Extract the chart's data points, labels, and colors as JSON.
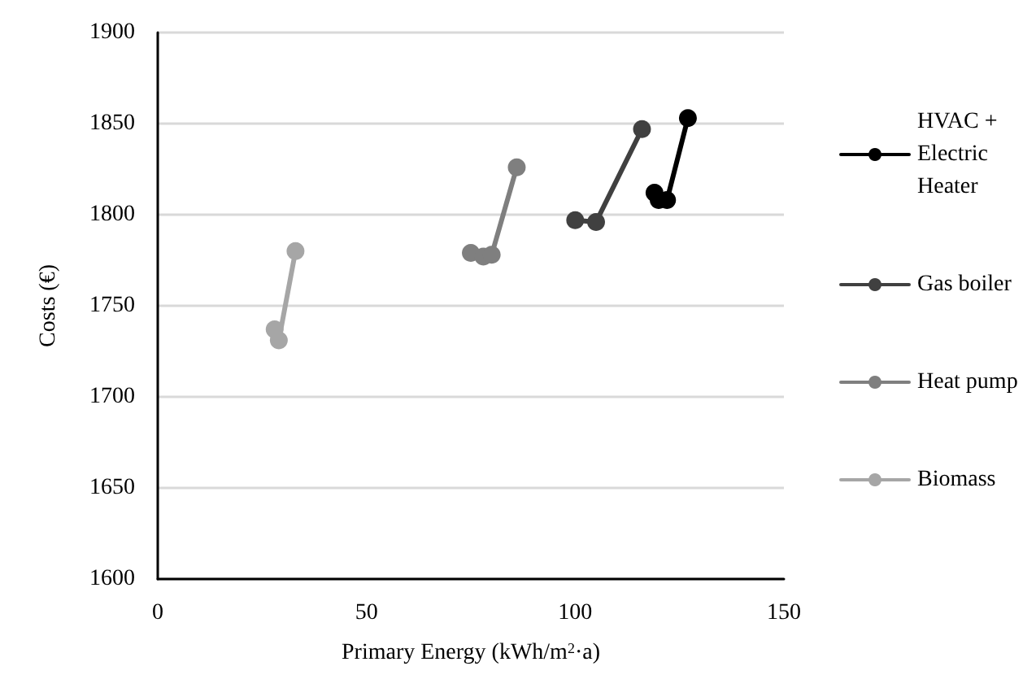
{
  "chart_data": {
    "type": "line",
    "xlabel": "Primary Energy (kWh/m$^{2}$·a)",
    "ylabel": "Costs (€)",
    "xlim": [
      0,
      150
    ],
    "xticks": [
      0,
      50,
      100,
      150
    ],
    "ylim": [
      1600,
      1900
    ],
    "yticks": [
      1600,
      1650,
      1700,
      1750,
      1800,
      1850,
      1900
    ],
    "grid": "y",
    "legend": "right",
    "marker": "circle",
    "line_style": "solid",
    "series": [
      {
        "name": "HVAC + Electric Heater",
        "color": "#000000",
        "x": [
          119,
          120,
          122,
          127
        ],
        "values": [
          1812,
          1808,
          1808,
          1853
        ]
      },
      {
        "name": "Gas boiler",
        "color": "#404040",
        "x": [
          100,
          105,
          116
        ],
        "values": [
          1797,
          1796,
          1847
        ]
      },
      {
        "name": "Heat pump",
        "color": "#7f7f7f",
        "x": [
          75,
          78,
          80,
          86
        ],
        "values": [
          1779,
          1777,
          1778,
          1826
        ]
      },
      {
        "name": "Biomass",
        "color": "#a6a6a6",
        "x": [
          28,
          29,
          33
        ],
        "values": [
          1737,
          1731,
          1780
        ]
      }
    ]
  }
}
